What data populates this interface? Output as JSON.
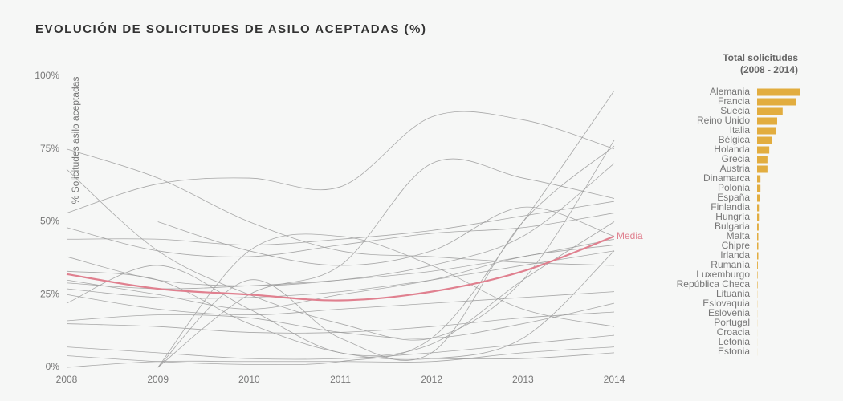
{
  "title": "EVOLUCIÓN DE SOLICITUDES DE ASILO ACEPTADAS (%)",
  "chart_data": [
    {
      "type": "line",
      "ylabel": "% Solicitudes asilo aceptadas",
      "x": [
        2008,
        2009,
        2010,
        2011,
        2012,
        2013,
        2014
      ],
      "xlim": [
        2008,
        2014
      ],
      "xticks": [
        2008,
        2009,
        2010,
        2011,
        2012,
        2013,
        2014
      ],
      "ylim": [
        0,
        100
      ],
      "yticks": [
        {
          "value": 0,
          "label": "0%"
        },
        {
          "value": 25,
          "label": "25%"
        },
        {
          "value": 50,
          "label": "50%"
        },
        {
          "value": 75,
          "label": "75%"
        },
        {
          "value": 100,
          "label": "100%"
        }
      ],
      "grid": false,
      "color": "#9a9a9a",
      "series": [
        {
          "values": [
            68,
            40,
            25,
            15,
            10,
            30,
            78
          ]
        },
        {
          "values": [
            53,
            63,
            65,
            62,
            86,
            85,
            75
          ]
        },
        {
          "values": [
            44,
            44,
            42,
            44,
            47,
            52,
            57
          ]
        },
        {
          "values": [
            48,
            40,
            38,
            42,
            46,
            48,
            53
          ]
        },
        {
          "values": [
            38,
            30,
            28,
            30,
            35,
            45,
            70
          ]
        },
        {
          "values": [
            30,
            25,
            20,
            25,
            30,
            38,
            42
          ]
        },
        {
          "values": [
            29,
            27,
            28,
            30,
            33,
            38,
            44
          ]
        },
        {
          "values": [
            27,
            24,
            24,
            26,
            30,
            35,
            40
          ]
        },
        {
          "values": [
            25,
            20,
            18,
            20,
            22,
            24,
            26
          ]
        },
        {
          "values": [
            16,
            18,
            17,
            12,
            10,
            15,
            22
          ]
        },
        {
          "values": [
            15,
            14,
            12,
            12,
            14,
            17,
            19
          ]
        },
        {
          "values": [
            7,
            5,
            3,
            3,
            5,
            8,
            11
          ]
        },
        {
          "values": [
            0,
            2,
            2,
            2,
            2,
            5,
            7
          ]
        },
        {
          "values": [
            22,
            35,
            20,
            5,
            8,
            30,
            50
          ]
        },
        {
          "values": [
            null,
            0,
            40,
            45,
            35,
            20,
            14
          ]
        },
        {
          "values": [
            null,
            0,
            30,
            10,
            5,
            50,
            76
          ]
        },
        {
          "values": [
            null,
            50,
            40,
            35,
            40,
            55,
            45
          ]
        },
        {
          "values": [
            null,
            0,
            25,
            35,
            70,
            65,
            58
          ]
        },
        {
          "values": [
            4,
            2,
            1,
            2,
            10,
            50,
            95
          ]
        },
        {
          "values": [
            33,
            30,
            15,
            5,
            3,
            10,
            40
          ]
        },
        {
          "values": [
            75,
            65,
            50,
            40,
            38,
            36,
            35
          ]
        },
        {
          "values": [
            null,
            null,
            null,
            null,
            3,
            3,
            5
          ]
        },
        {
          "name": "Media",
          "color": "#e0808f",
          "values": [
            32,
            27,
            25,
            23,
            26,
            33,
            45
          ]
        }
      ]
    },
    {
      "type": "hbar",
      "title": [
        "Total solicitudes",
        "(2008 - 2014)"
      ],
      "color": "#e2ad3f",
      "categories": [
        "Alemania",
        "Francia",
        "Suecia",
        "Reino Unido",
        "Italia",
        "Bélgica",
        "Holanda",
        "Grecia",
        "Austria",
        "Dinamarca",
        "Polonia",
        "España",
        "Finlandia",
        "Hungría",
        "Bulgaria",
        "Malta",
        "Chipre",
        "Irlanda",
        "Rumanía",
        "Luxemburgo",
        "República Checa",
        "Lituania",
        "Eslovaquia",
        "Eslovenia",
        "Portugal",
        "Croacia",
        "Letonia",
        "Estonia"
      ],
      "values": [
        700,
        640,
        420,
        330,
        310,
        250,
        200,
        170,
        170,
        55,
        55,
        40,
        30,
        30,
        25,
        20,
        20,
        20,
        12,
        8,
        8,
        3,
        3,
        2,
        2,
        1,
        1,
        1
      ]
    }
  ]
}
